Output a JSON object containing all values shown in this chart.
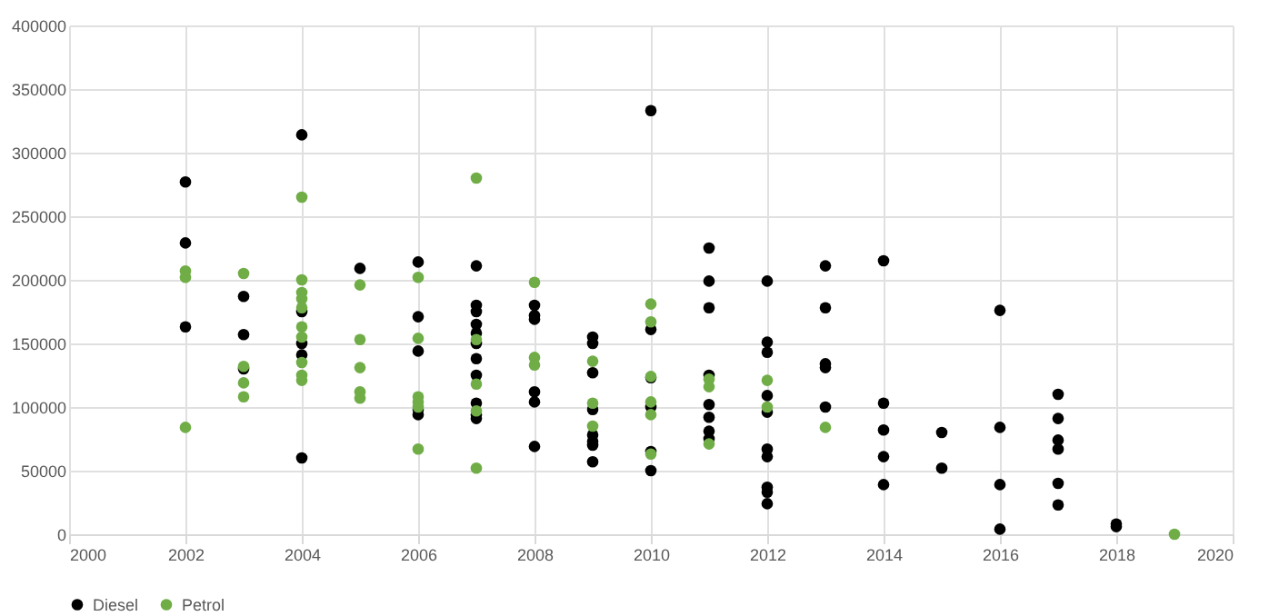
{
  "chart_data": {
    "type": "scatter",
    "xlim": [
      2000,
      2020
    ],
    "xticks": [
      2000,
      2002,
      2004,
      2006,
      2008,
      2010,
      2012,
      2014,
      2016,
      2018,
      2020
    ],
    "ylim": [
      0,
      400000
    ],
    "yticks": [
      0,
      50000,
      100000,
      150000,
      200000,
      250000,
      300000,
      350000,
      400000
    ],
    "grid": true,
    "legend": "bottom",
    "marker": "circle",
    "series": [
      {
        "name": "Diesel",
        "color": "#000000",
        "x": [
          2002,
          2002,
          2002,
          2003,
          2003,
          2003,
          2004,
          2004,
          2004,
          2004,
          2004,
          2005,
          2006,
          2006,
          2006,
          2006,
          2006,
          2007,
          2007,
          2007,
          2007,
          2007,
          2007,
          2007,
          2007,
          2007,
          2007,
          2007,
          2008,
          2008,
          2008,
          2008,
          2008,
          2008,
          2009,
          2009,
          2009,
          2009,
          2009,
          2009,
          2009,
          2009,
          2010,
          2010,
          2010,
          2010,
          2010,
          2010,
          2011,
          2011,
          2011,
          2011,
          2011,
          2011,
          2011,
          2011,
          2012,
          2012,
          2012,
          2012,
          2012,
          2012,
          2012,
          2012,
          2012,
          2012,
          2013,
          2013,
          2013,
          2013,
          2013,
          2014,
          2014,
          2014,
          2014,
          2014,
          2015,
          2015,
          2016,
          2016,
          2016,
          2016,
          2017,
          2017,
          2017,
          2017,
          2017,
          2017,
          2018,
          2018
        ],
        "values": [
          277000,
          229000,
          163000,
          187000,
          157000,
          130000,
          314000,
          175000,
          150000,
          141000,
          60000,
          209000,
          214000,
          171000,
          144000,
          98000,
          94000,
          211000,
          180000,
          175000,
          165000,
          158000,
          150000,
          138000,
          125000,
          103000,
          94000,
          91000,
          180000,
          172000,
          169000,
          112000,
          104000,
          69000,
          155000,
          150000,
          127000,
          98000,
          78000,
          73000,
          70000,
          57000,
          333000,
          161000,
          123000,
          100000,
          65000,
          50000,
          225000,
          199000,
          178000,
          125000,
          102000,
          92000,
          81000,
          75000,
          199000,
          151000,
          143000,
          109000,
          96000,
          67000,
          61000,
          37000,
          33000,
          24000,
          211000,
          178000,
          134000,
          131000,
          100000,
          215000,
          103000,
          82000,
          61000,
          39000,
          80000,
          52000,
          176000,
          84000,
          39000,
          4000,
          110000,
          91000,
          74000,
          67000,
          40000,
          23000,
          8000,
          6000
        ]
      },
      {
        "name": "Petrol",
        "color": "#70ad47",
        "x": [
          2002,
          2002,
          2002,
          2003,
          2003,
          2003,
          2003,
          2004,
          2004,
          2004,
          2004,
          2004,
          2004,
          2004,
          2004,
          2004,
          2004,
          2005,
          2005,
          2005,
          2005,
          2005,
          2006,
          2006,
          2006,
          2006,
          2006,
          2006,
          2007,
          2007,
          2007,
          2007,
          2007,
          2008,
          2008,
          2008,
          2009,
          2009,
          2009,
          2010,
          2010,
          2010,
          2010,
          2010,
          2010,
          2011,
          2011,
          2011,
          2012,
          2012,
          2013,
          2019
        ],
        "values": [
          207000,
          202000,
          84000,
          205000,
          132000,
          119000,
          108000,
          265000,
          200000,
          190000,
          185000,
          178000,
          163000,
          155000,
          135000,
          125000,
          121000,
          196000,
          153000,
          131000,
          112000,
          107000,
          202000,
          154000,
          108000,
          104000,
          100000,
          67000,
          280000,
          153000,
          118000,
          97000,
          52000,
          198000,
          139000,
          133000,
          136000,
          103000,
          85000,
          181000,
          167000,
          124000,
          104000,
          94000,
          63000,
          122000,
          116000,
          71000,
          121000,
          100000,
          84000,
          0
        ]
      }
    ]
  }
}
